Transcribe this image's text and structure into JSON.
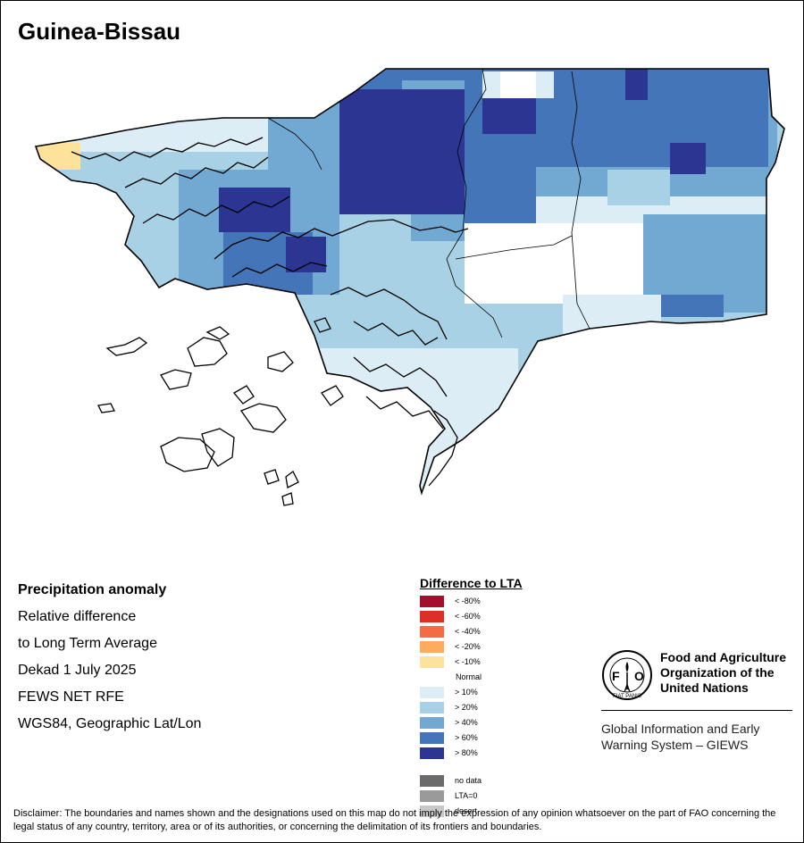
{
  "map": {
    "title": "Guinea-Bissau",
    "anomaly_colors": {
      "lt_minus_10": "#fde29b",
      "gt_10": "#dcedf6",
      "gt_20": "#a9d1e6",
      "gt_40": "#72a9d3",
      "gt_60": "#4575b9",
      "gt_80": "#2d3593"
    }
  },
  "info": {
    "heading": "Precipitation anomaly",
    "line1": "Relative difference",
    "line2": "to Long Term Average",
    "line3": "Dekad 1 July 2025",
    "line4": "FEWS NET RFE",
    "line5": "WGS84, Geographic Lat/Lon"
  },
  "legend": {
    "title": "Difference to LTA",
    "items": [
      {
        "label": "< -80%",
        "color": "#a50f2d"
      },
      {
        "label": "< -60%",
        "color": "#dc3027"
      },
      {
        "label": "< -40%",
        "color": "#f46c43"
      },
      {
        "label": "< -20%",
        "color": "#fdab5f"
      },
      {
        "label": "< -10%",
        "color": "#fde29b"
      },
      {
        "label": "Normal",
        "color": "#ffffff"
      },
      {
        "label": "> 10%",
        "color": "#dcedf6"
      },
      {
        "label": "> 20%",
        "color": "#a9d1e6"
      },
      {
        "label": "> 40%",
        "color": "#72a9d3"
      },
      {
        "label": "> 60%",
        "color": "#4575b9"
      },
      {
        "label": "> 80%",
        "color": "#2d3593"
      }
    ],
    "extra_items": [
      {
        "label": "no data",
        "color": "#6b6b6b"
      },
      {
        "label": "LTA=0",
        "color": "#9a9a9a"
      },
      {
        "label": "desert",
        "color": "#c8c8c8"
      }
    ]
  },
  "fao": {
    "logo_letters": "FAO",
    "logo_motto": "FIAT PANIS",
    "name_line1": "Food and Agriculture",
    "name_line2": "Organization of the",
    "name_line3": "United Nations",
    "giews_line1": "Global Information and Early",
    "giews_line2": "Warning System – GIEWS"
  },
  "disclaimer": "Disclaimer: The boundaries and names shown and the designations used on this map do not imply the expression of any opinion whatsoever on the part of FAO concerning the legal status of any country, territory, area or of its authorities, or concerning the delimitation of its frontiers and boundaries."
}
